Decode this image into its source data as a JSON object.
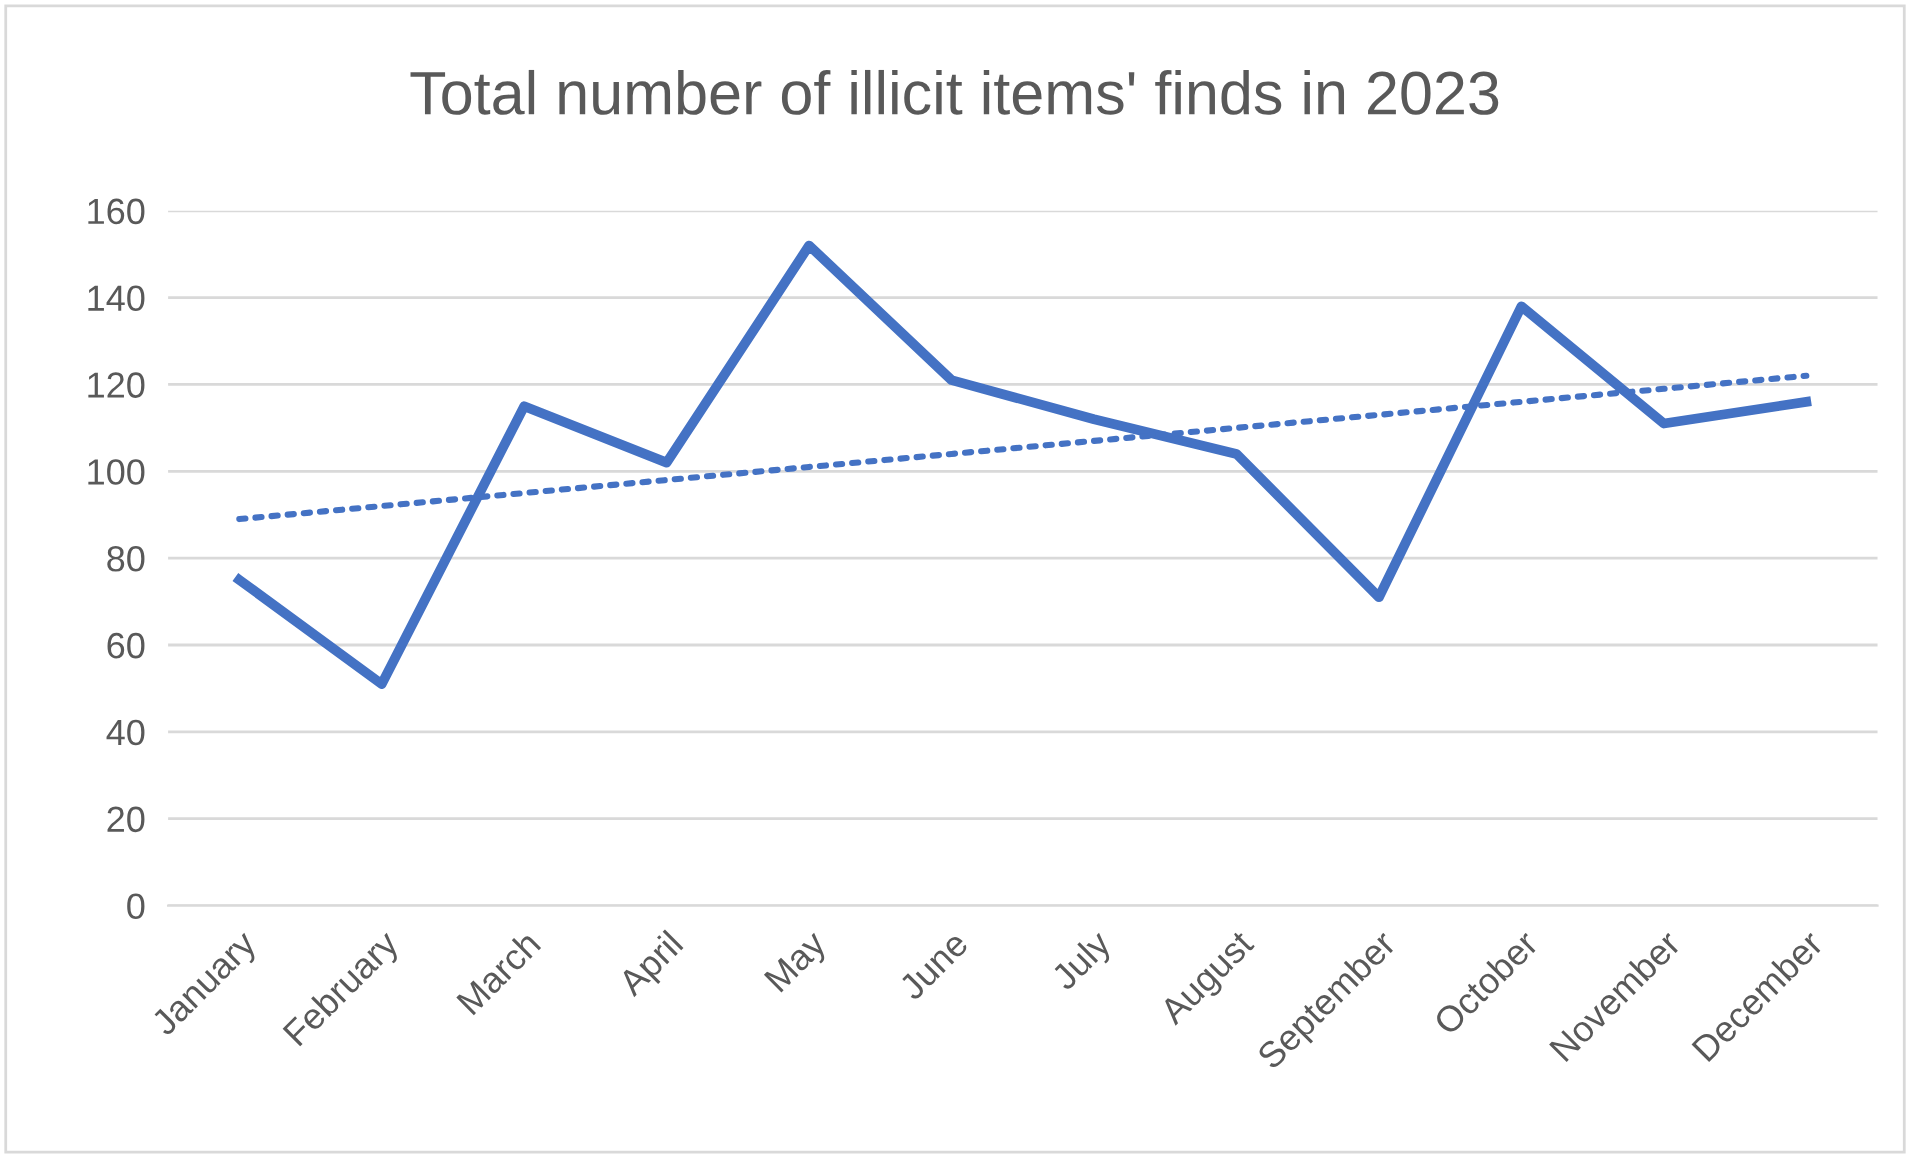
{
  "chart_data": {
    "type": "line",
    "title": "Total number of illicit items' finds in 2023",
    "categories": [
      "January",
      "February",
      "March",
      "April",
      "May",
      "June",
      "July",
      "August",
      "September",
      "October",
      "November",
      "December"
    ],
    "series": [
      {
        "color": "#4472c4",
        "values": [
          75,
          51,
          115,
          102,
          152,
          121,
          112,
          104,
          71,
          138,
          111,
          116
        ],
        "line_style": "solid"
      },
      {
        "type": "line",
        "color": "#4472c4",
        "values": [
          89,
          92,
          95,
          98,
          101,
          104,
          107,
          110,
          113,
          116,
          119,
          122
        ],
        "line_style": "dotted"
      }
    ],
    "ylim": [
      0,
      160
    ],
    "yticks": [
      0,
      20,
      40,
      60,
      80,
      100,
      120,
      140,
      160
    ],
    "grid": "y"
  }
}
